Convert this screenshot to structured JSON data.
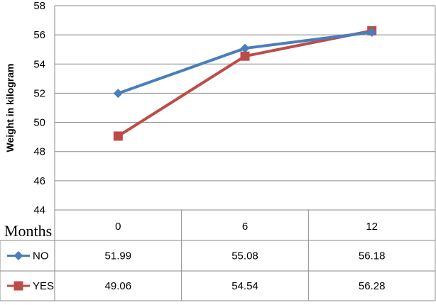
{
  "chart_data": {
    "type": "line",
    "ylabel": "Weight in kilogram",
    "xlabel": "Months",
    "categories": [
      "0",
      "6",
      "12"
    ],
    "ylim": [
      44,
      58
    ],
    "yticks": [
      44,
      46,
      48,
      50,
      52,
      54,
      56,
      58
    ],
    "grid": "horizontal",
    "legend": "data-table",
    "series": [
      {
        "name": "NO",
        "values": [
          51.99,
          55.08,
          56.18
        ],
        "color": "#4a7ebb",
        "marker": "diamond",
        "table_values": [
          "51.99",
          "55.08",
          "56.18"
        ]
      },
      {
        "name": "YES",
        "values": [
          49.06,
          54.54,
          56.28
        ],
        "color": "#be4b48",
        "marker": "square",
        "table_values": [
          "49.06",
          "54.54",
          "56.28"
        ]
      }
    ]
  }
}
